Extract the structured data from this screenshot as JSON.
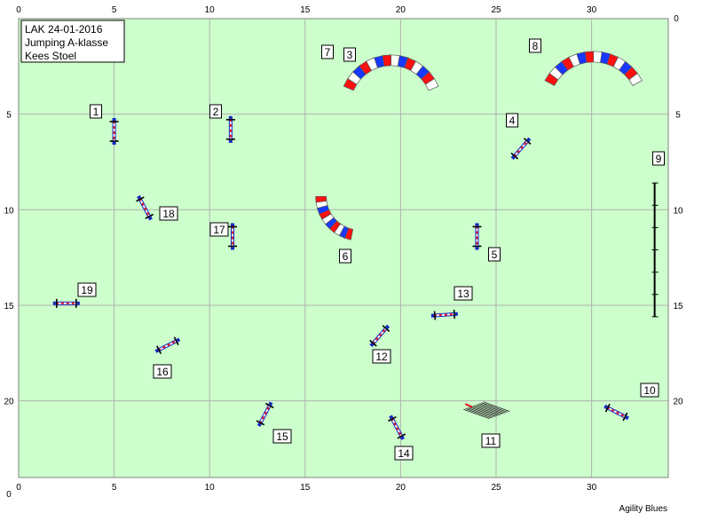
{
  "header": {
    "line1": "LAK 24-01-2016",
    "line2": "Jumping A-klasse",
    "line3": "Kees Stoel"
  },
  "footer": {
    "credit": "Agility Blues"
  },
  "colors": {
    "field": "#ccffcc",
    "grid": "#b0b0b0",
    "pole_red": "#e8111b",
    "wing_blue": "#1028c8",
    "tunnel_red": "#ff1010",
    "tunnel_blue": "#1838ff",
    "label_border": "#000000"
  },
  "chart_data": {
    "type": "scatter",
    "xlim": [
      0,
      34
    ],
    "ylim": [
      0,
      24
    ],
    "x_ticks": [
      0,
      5,
      10,
      15,
      20,
      25,
      30
    ],
    "y_ticks": [
      5,
      10,
      15,
      20
    ],
    "grid": true,
    "units": "m",
    "obstacles": [
      {
        "label": "1",
        "type": "jump",
        "x": 5.0,
        "y": 5.9,
        "angle": 90
      },
      {
        "label": "2",
        "type": "jump",
        "x": 11.1,
        "y": 5.8,
        "angle": 90
      },
      {
        "label": "3",
        "type": "tunnel",
        "x": 19.5,
        "y": 2.5
      },
      {
        "label": "4",
        "type": "jump",
        "x": 26.3,
        "y": 6.8,
        "angle": -49
      },
      {
        "label": "5",
        "type": "jump",
        "x": 24.0,
        "y": 11.4,
        "angle": 90
      },
      {
        "label": "6",
        "type": "tunnel",
        "x": 16.2,
        "y": 10.0
      },
      {
        "label": "7",
        "type": "number",
        "x": 16.0,
        "y": 2.2
      },
      {
        "label": "8",
        "type": "tunnel",
        "x": 30.1,
        "y": 2.5
      },
      {
        "label": "9",
        "type": "long",
        "x": 33.3,
        "y": 12.1
      },
      {
        "label": "10",
        "type": "jump",
        "x": 31.3,
        "y": 20.6,
        "angle": 27
      },
      {
        "label": "11",
        "type": "tire",
        "x": 24.5,
        "y": 20.5
      },
      {
        "label": "12",
        "type": "jump",
        "x": 18.9,
        "y": 16.6,
        "angle": -49
      },
      {
        "label": "13",
        "type": "jump",
        "x": 22.3,
        "y": 15.5,
        "angle": -4
      },
      {
        "label": "14",
        "type": "jump",
        "x": 19.8,
        "y": 21.4,
        "angle": 62
      },
      {
        "label": "15",
        "type": "jump",
        "x": 12.9,
        "y": 20.7,
        "angle": -62
      },
      {
        "label": "16",
        "type": "jump",
        "x": 7.8,
        "y": 17.1,
        "angle": -27
      },
      {
        "label": "17",
        "type": "jump",
        "x": 11.2,
        "y": 11.4,
        "angle": 90
      },
      {
        "label": "18",
        "type": "jump",
        "x": 6.6,
        "y": 9.9,
        "angle": 62
      },
      {
        "label": "19",
        "type": "jump",
        "x": 2.5,
        "y": 14.9,
        "angle": 0
      }
    ]
  }
}
